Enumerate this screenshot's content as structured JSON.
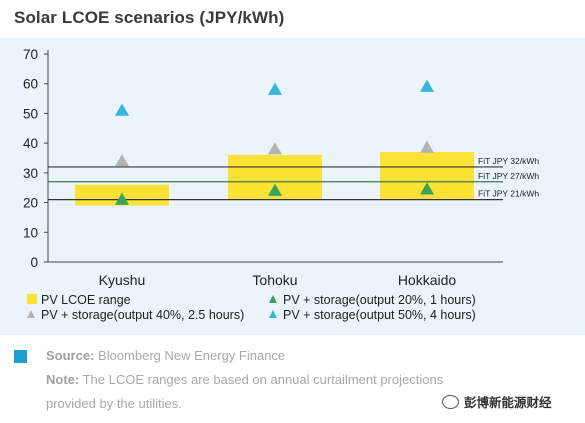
{
  "title": "Solar LCOE scenarios (JPY/kWh)",
  "chart_data": {
    "type": "bar",
    "categories": [
      "Kyushu",
      "Tohoku",
      "Hokkaido"
    ],
    "ylim": [
      0,
      70
    ],
    "yticks": [
      0,
      10,
      20,
      30,
      40,
      50,
      60,
      70
    ],
    "ranges": [
      {
        "category": "Kyushu",
        "low": 19,
        "high": 26
      },
      {
        "category": "Tohoku",
        "low": 21,
        "high": 36
      },
      {
        "category": "Hokkaido",
        "low": 21,
        "high": 37
      }
    ],
    "series": [
      {
        "name": "PV + storage(output 20%, 1 hours)",
        "color": "#3aa35a",
        "values": [
          21,
          24,
          24.5
        ]
      },
      {
        "name": "PV + storage(output 40%, 2.5 hours)",
        "color": "#b3b3b3",
        "values": [
          34,
          38,
          38.5
        ]
      },
      {
        "name": "PV + storage(output 50%, 4 hours)",
        "color": "#36b5dd",
        "values": [
          51,
          58,
          59
        ]
      }
    ],
    "range_series_name": "PV LCOE range",
    "range_color": "#fbe234",
    "reference_lines": [
      {
        "label": "FiT JPY 32/kWh",
        "value": 32
      },
      {
        "label": "FiT JPY 27/kWh",
        "value": 27
      },
      {
        "label": "FiT JPY 21/kWh",
        "value": 21
      }
    ],
    "grid": false,
    "legend_position": "bottom"
  },
  "source": {
    "label": "Source:",
    "text": " Bloomberg New Energy Finance",
    "accent_color": "#1f9cd1"
  },
  "note": {
    "label": "Note:",
    "line1": " The LCOE ranges are based on annual curtailment projections",
    "line2": "provided by the utilities."
  },
  "watermark": {
    "text": "彭博新能源财经",
    "icon": "wechat-icon"
  }
}
